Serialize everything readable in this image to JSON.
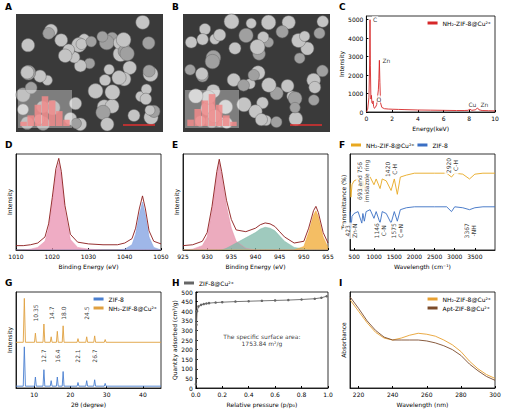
{
  "chart_data": [
    {
      "panel": "A",
      "type": "image",
      "inset": {
        "type": "bar",
        "values": [
          2,
          5,
          10,
          14,
          12,
          7,
          3
        ],
        "ylim": [
          0,
          16
        ],
        "color": "#f08a8a",
        "tick_labels": false
      }
    },
    {
      "panel": "B",
      "type": "image",
      "inset": {
        "type": "bar",
        "values": [
          3,
          8,
          12,
          15,
          10,
          5,
          2
        ],
        "ylim": [
          0,
          16
        ],
        "color": "#f08a8a",
        "tick_labels": false
      }
    },
    {
      "panel": "C",
      "type": "line",
      "x_label": "Energy(keV)",
      "y_label": "Intensity",
      "xlim": [
        0,
        10
      ],
      "xticks": [
        0,
        2,
        4,
        6,
        8,
        10
      ],
      "ylim": [
        0,
        5200
      ],
      "yticks": [
        0,
        1000,
        2000,
        3000,
        4000,
        5000
      ],
      "grid": false,
      "legend": "upper right",
      "x": [
        0,
        0.1,
        0.2,
        0.25,
        0.28,
        0.31,
        0.35,
        0.39,
        0.43,
        0.48,
        0.52,
        0.56,
        0.62,
        0.7,
        0.8,
        0.88,
        0.93,
        0.97,
        1.01,
        1.05,
        1.1,
        1.2,
        1.4,
        1.7,
        2.0,
        2.5,
        3,
        4,
        5,
        6,
        7,
        7.6,
        7.9,
        8.05,
        8.2,
        8.5,
        8.63,
        8.75,
        9,
        9.5,
        10
      ],
      "series": [
        {
          "name": "NH₂-ZIF-8@Cu²⁺",
          "color": "#d62728",
          "values": [
            0,
            150,
            800,
            2600,
            5000,
            2500,
            700,
            900,
            500,
            450,
            600,
            300,
            200,
            250,
            400,
            900,
            1200,
            1800,
            2800,
            1600,
            500,
            250,
            180,
            160,
            150,
            140,
            130,
            110,
            100,
            90,
            80,
            80,
            90,
            150,
            90,
            120,
            230,
            120,
            80,
            70,
            60
          ]
        }
      ],
      "annotations": [
        {
          "x": 0.28,
          "y": 5000,
          "text": "C"
        },
        {
          "x": 0.55,
          "y": 700,
          "text": "O"
        },
        {
          "x": 1.01,
          "y": 2800,
          "text": "Zn"
        },
        {
          "x": 7.7,
          "y": 400,
          "text": "Cu"
        },
        {
          "x": 8.63,
          "y": 400,
          "text": "Zn"
        }
      ]
    },
    {
      "panel": "D",
      "type": "line",
      "x_label": "Binding Energy (eV)",
      "y_label": "Intensity",
      "xlim": [
        1010,
        1050
      ],
      "xticks": [
        1010,
        1020,
        1030,
        1040,
        1050
      ],
      "ylim": [
        0,
        110
      ],
      "tick_labels": "x",
      "grid": false,
      "x": [
        1010,
        1012,
        1014,
        1016,
        1018,
        1019,
        1020,
        1021,
        1021.8,
        1022.5,
        1023.5,
        1025,
        1027,
        1030,
        1034,
        1038,
        1040,
        1042,
        1043,
        1044,
        1044.9,
        1045.7,
        1046.7,
        1048,
        1050
      ],
      "series": [
        {
          "type": "area",
          "color": "#e990b0",
          "values": [
            0,
            0,
            1,
            3,
            10,
            25,
            55,
            88,
            100,
            85,
            45,
            12,
            3,
            1,
            0,
            0,
            0,
            0,
            0,
            0,
            0,
            0,
            0,
            0,
            0
          ]
        },
        {
          "type": "area",
          "color": "#7f9fe0",
          "values": [
            0,
            0,
            0,
            0,
            0,
            0,
            0,
            0,
            0,
            0,
            0,
            0,
            0,
            0,
            0,
            0,
            1,
            6,
            18,
            40,
            55,
            40,
            15,
            3,
            0
          ]
        },
        {
          "type": "line",
          "color": "#8b1a1a",
          "values": [
            5,
            5,
            6,
            8,
            15,
            30,
            60,
            93,
            105,
            90,
            51,
            18,
            9,
            7,
            6,
            6,
            8,
            13,
            25,
            47,
            62,
            47,
            22,
            10,
            7
          ]
        }
      ]
    },
    {
      "panel": "E",
      "type": "line",
      "x_label": "Binding Energy (eV)",
      "y_label": "Intensity",
      "xlim": [
        925,
        955
      ],
      "xticks": [
        925,
        930,
        935,
        940,
        945,
        950,
        955
      ],
      "ylim": [
        0,
        110
      ],
      "tick_labels": "x",
      "grid": false,
      "x": [
        925,
        927,
        929,
        930,
        931,
        932,
        932.5,
        933,
        934,
        935,
        936,
        938,
        940,
        941,
        942,
        943,
        944,
        945,
        946,
        948,
        950,
        951,
        952,
        952.5,
        953,
        954,
        955
      ],
      "series": [
        {
          "type": "area",
          "color": "#e58fa8",
          "values": [
            0,
            1,
            5,
            15,
            45,
            85,
            100,
            85,
            50,
            25,
            10,
            2,
            0,
            0,
            0,
            0,
            0,
            0,
            0,
            0,
            0,
            0,
            0,
            0,
            0,
            0,
            0
          ]
        },
        {
          "type": "area",
          "color": "#7fb8a8",
          "values": [
            0,
            0,
            0,
            0,
            0,
            0,
            0,
            0,
            2,
            5,
            8,
            14,
            20,
            24,
            26,
            25,
            22,
            16,
            10,
            3,
            1,
            0,
            0,
            0,
            0,
            0,
            0
          ]
        },
        {
          "type": "area",
          "color": "#f0a830",
          "values": [
            0,
            0,
            0,
            0,
            0,
            0,
            0,
            0,
            0,
            0,
            0,
            0,
            0,
            0,
            0,
            0,
            0,
            0,
            0,
            0,
            4,
            20,
            40,
            45,
            38,
            15,
            3
          ]
        },
        {
          "type": "line",
          "color": "#8b1a1a",
          "values": [
            5,
            6,
            10,
            20,
            50,
            90,
            104,
            90,
            57,
            35,
            23,
            21,
            25,
            29,
            31,
            30,
            27,
            21,
            15,
            8,
            10,
            25,
            45,
            50,
            43,
            20,
            8
          ]
        }
      ]
    },
    {
      "panel": "F",
      "type": "line",
      "x_label": "Wavelength (cm⁻¹)",
      "y_label": "Transmittance (%)",
      "xlim": [
        400,
        4000
      ],
      "xticks": [
        500,
        1000,
        1500,
        2000,
        2500,
        3000,
        3500
      ],
      "ylim": [
        0,
        100
      ],
      "tick_labels": "x",
      "grid": false,
      "legend": "top",
      "x": [
        400,
        423,
        450,
        500,
        600,
        693,
        720,
        756,
        800,
        900,
        995,
        1050,
        1146,
        1200,
        1300,
        1420,
        1500,
        1575,
        1650,
        1800,
        2000,
        2500,
        2800,
        2920,
        3000,
        3200,
        3367,
        3500,
        3700,
        4000
      ],
      "series": [
        {
          "name": "NH₂-ZIF-8@Cu²⁺",
          "color": "#e8a820",
          "values": [
            70,
            55,
            68,
            72,
            74,
            62,
            72,
            64,
            74,
            76,
            68,
            74,
            64,
            74,
            72,
            62,
            74,
            58,
            76,
            78,
            80,
            80,
            80,
            76,
            80,
            79,
            74,
            79,
            80,
            80
          ]
        },
        {
          "name": "ZIF-8",
          "color": "#3a6fc4",
          "values": [
            40,
            22,
            35,
            38,
            40,
            28,
            38,
            30,
            40,
            42,
            33,
            40,
            28,
            40,
            38,
            28,
            40,
            30,
            42,
            44,
            45,
            45,
            45,
            40,
            45,
            44,
            42,
            44,
            45,
            45
          ]
        }
      ],
      "annotations": [
        {
          "x": 423,
          "y": 20,
          "lines": [
            "423",
            "Zn-N"
          ]
        },
        {
          "x": 724,
          "y": 72,
          "lines": [
            "693 and 756",
            "imidazole ring"
          ]
        },
        {
          "x": 1146,
          "y": 20,
          "lines": [
            "1146",
            "C-N"
          ]
        },
        {
          "x": 1420,
          "y": 84,
          "lines": [
            "1420",
            "C-H"
          ]
        },
        {
          "x": 1575,
          "y": 20,
          "lines": [
            "1575",
            "C=N"
          ]
        },
        {
          "x": 2920,
          "y": 88,
          "lines": [
            "2920",
            "C-H"
          ]
        },
        {
          "x": 3367,
          "y": 20,
          "lines": [
            "3367",
            "-NH"
          ]
        }
      ]
    },
    {
      "panel": "G",
      "type": "line",
      "x_label": "2θ (degree)",
      "y_label": "Intensity",
      "xlim": [
        5,
        45
      ],
      "xticks": [
        10,
        20,
        30,
        40
      ],
      "ylim": [
        0,
        105
      ],
      "tick_labels": "x",
      "grid": false,
      "legend": "upper right",
      "x": [
        5,
        7.0,
        7.3,
        7.6,
        10.1,
        10.35,
        10.6,
        12.45,
        12.7,
        12.95,
        14.45,
        14.7,
        14.95,
        16.15,
        16.4,
        16.65,
        17.75,
        18.0,
        18.25,
        21.85,
        22.1,
        22.35,
        24.25,
        24.5,
        24.75,
        26.45,
        26.7,
        26.95,
        29.35,
        29.6,
        29.85,
        45
      ],
      "series": [
        {
          "name": "ZIF-8",
          "color": "#4a7fd0",
          "values": [
            2,
            2,
            45,
            2,
            2,
            12,
            2,
            2,
            20,
            2,
            2,
            8,
            2,
            2,
            12,
            2,
            2,
            18,
            2,
            2,
            6,
            2,
            2,
            8,
            2,
            2,
            9,
            2,
            2,
            5,
            2,
            2
          ]
        },
        {
          "name": "NH₂-ZIF-8@Cu²⁺",
          "color": "#e0a040",
          "values": [
            50,
            50,
            98,
            50,
            50,
            60,
            50,
            50,
            70,
            50,
            50,
            56,
            50,
            50,
            62,
            50,
            50,
            68,
            50,
            50,
            54,
            50,
            50,
            56,
            50,
            50,
            57,
            50,
            50,
            53,
            50,
            50
          ]
        }
      ],
      "annotations": [
        {
          "x": 10.35,
          "y": 82,
          "text": "10.35"
        },
        {
          "x": 12.7,
          "y": 35,
          "text": "12.7"
        },
        {
          "x": 14.7,
          "y": 82,
          "text": "14.7"
        },
        {
          "x": 16.4,
          "y": 35,
          "text": "16.4"
        },
        {
          "x": 18.0,
          "y": 82,
          "text": "18.0"
        },
        {
          "x": 22.1,
          "y": 35,
          "text": "22.1"
        },
        {
          "x": 24.5,
          "y": 82,
          "text": "24.5"
        },
        {
          "x": 26.7,
          "y": 35,
          "text": "26.7"
        }
      ]
    },
    {
      "panel": "H",
      "type": "line",
      "x_label": "Relative pressure (p/p₀)",
      "y_label": "Quantity adsorbed (cm³/g)",
      "xlim": [
        0,
        1
      ],
      "xticks": [
        {
          "value": 0,
          "label": "0.0"
        },
        {
          "value": 0.2,
          "label": "0.2"
        },
        {
          "value": 0.4,
          "label": "0.4"
        },
        {
          "value": 0.6,
          "label": "0.6"
        },
        {
          "value": 0.8,
          "label": "0.8"
        },
        {
          "value": 1,
          "label": "1.0"
        }
      ],
      "ylim": [
        0,
        500
      ],
      "yticks": [
        0,
        50,
        100,
        150,
        200,
        250,
        300,
        350,
        400,
        450,
        500
      ],
      "grid": false,
      "legend": "top",
      "marker": "circle",
      "x": [
        0.001,
        0.005,
        0.01,
        0.02,
        0.04,
        0.06,
        0.08,
        0.1,
        0.15,
        0.2,
        0.3,
        0.4,
        0.5,
        0.6,
        0.7,
        0.8,
        0.9,
        0.95,
        0.99
      ],
      "series": [
        {
          "name": "ZIF-8@Cu²⁺",
          "color": "#666666",
          "values": [
            20,
            330,
            400,
            425,
            433,
            437,
            440,
            442,
            445,
            447,
            450,
            452,
            454,
            456,
            458,
            461,
            465,
            470,
            478
          ]
        }
      ],
      "annotations": [
        {
          "x": 0.5,
          "y": 250,
          "lines": [
            "The specific surface area:",
            "1753.84 m²/g"
          ]
        }
      ]
    },
    {
      "panel": "I",
      "type": "line",
      "x_label": "Wavelength (nm)",
      "y_label": "Absorbance",
      "xlim": [
        215,
        300
      ],
      "xticks": [
        220,
        240,
        260,
        280,
        300
      ],
      "ylim": [
        0,
        1
      ],
      "tick_labels": "x",
      "grid": false,
      "legend": "upper right",
      "x": [
        215,
        220,
        225,
        230,
        235,
        240,
        245,
        250,
        255,
        260,
        265,
        270,
        275,
        280,
        285,
        290,
        295,
        300
      ],
      "series": [
        {
          "name": "NH₂-ZIF-8@Cu²⁺",
          "color": "#e8a030",
          "values": [
            0.92,
            0.8,
            0.68,
            0.58,
            0.52,
            0.5,
            0.52,
            0.55,
            0.57,
            0.56,
            0.54,
            0.5,
            0.45,
            0.38,
            0.28,
            0.2,
            0.14,
            0.1
          ]
        },
        {
          "name": "Apt-ZIF-8@Cu²⁺",
          "color": "#7a4a2a",
          "values": [
            0.95,
            0.83,
            0.7,
            0.6,
            0.53,
            0.5,
            0.5,
            0.5,
            0.5,
            0.49,
            0.47,
            0.44,
            0.4,
            0.34,
            0.25,
            0.18,
            0.12,
            0.08
          ]
        }
      ]
    }
  ]
}
